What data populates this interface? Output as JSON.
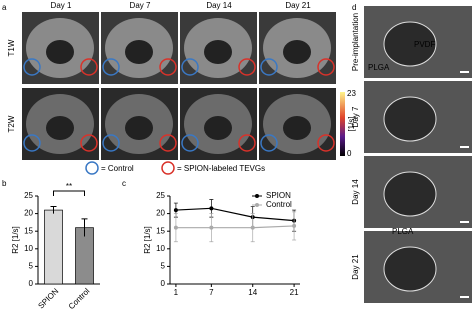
{
  "panel_labels": [
    "a",
    "b",
    "c",
    "d"
  ],
  "panel_a": {
    "columns": [
      "Day 1",
      "Day 7",
      "Day 14",
      "Day 21"
    ],
    "rows": [
      "T1W",
      "T2W"
    ],
    "colorbar": {
      "min": 0,
      "max": 23,
      "unit": "[1/s]"
    },
    "legend": [
      "= Control",
      "= SPION-labeled TEVGs"
    ]
  },
  "panel_d": {
    "rows": [
      "Pre-implantation",
      "Day 7",
      "Day 14",
      "Day 21"
    ],
    "annotations": [
      "PVDF",
      "PLGA",
      "PLGA"
    ]
  },
  "chart_data": [
    {
      "type": "bar",
      "categories": [
        "SPION",
        "Control"
      ],
      "values": [
        21,
        16
      ],
      "errors": [
        1,
        2.5
      ],
      "colors": [
        "#d9d9d9",
        "#8c8c8c"
      ],
      "ylabel": "R2 [1/s]",
      "ylim": [
        0,
        25
      ],
      "yticks": [
        0,
        5,
        10,
        15,
        20,
        25
      ],
      "significance": "**"
    },
    {
      "type": "line",
      "x": [
        1,
        7,
        14,
        21
      ],
      "xlim": [
        0,
        22
      ],
      "xticks": [
        1,
        7,
        14,
        21
      ],
      "ylim": [
        0,
        25
      ],
      "yticks": [
        0,
        5,
        10,
        15,
        20,
        25
      ],
      "ylabel": "R2 [1/s]",
      "legend": "upper right",
      "series": [
        {
          "name": "SPION",
          "color": "#000000",
          "values": [
            21,
            21.5,
            19,
            18
          ],
          "errors": [
            2,
            2.5,
            3,
            3
          ]
        },
        {
          "name": "Control",
          "color": "#aaaaaa",
          "values": [
            16,
            16,
            16,
            16.5
          ],
          "errors": [
            4,
            4,
            4,
            4
          ]
        }
      ]
    }
  ]
}
